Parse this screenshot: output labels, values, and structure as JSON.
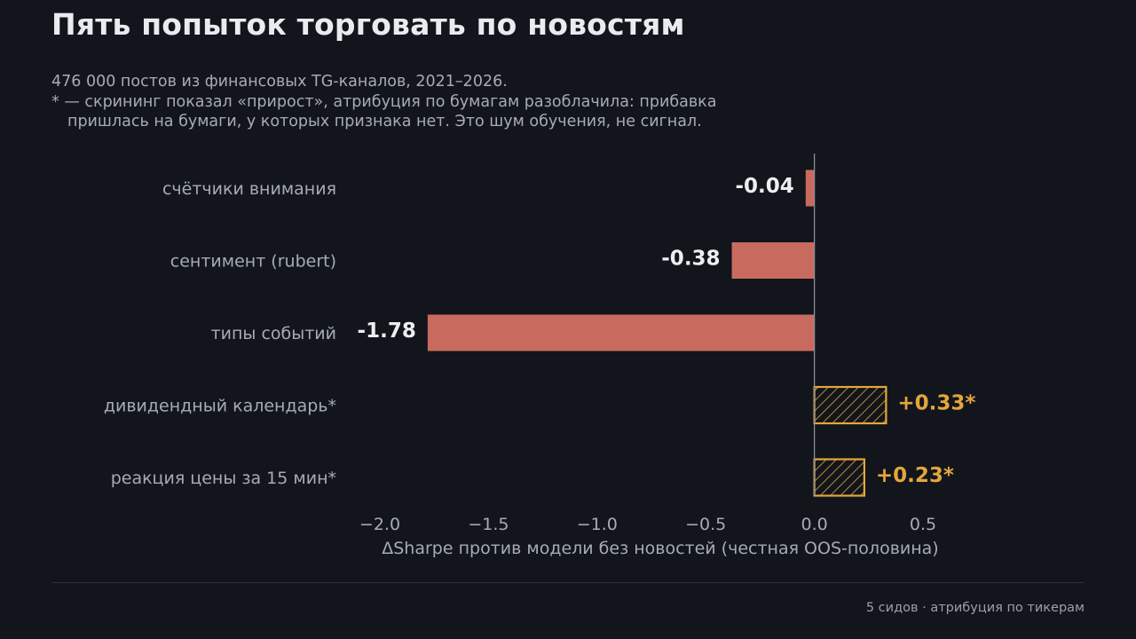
{
  "header": {
    "title": "Пять попыток торговать по новостям",
    "subtitle_lines": [
      "476 000 постов из финансовых TG-каналов, 2021–2026.",
      "* — скрининг показал «прирост», атрибуция по бумагам разоблачила: прибавка",
      "пришлась на бумаги, у которых признака нет. Это шум обучения, не сигнал."
    ]
  },
  "footer": {
    "note": "5 сидов · атрибуция по тикерам"
  },
  "colors": {
    "background": "#12151c",
    "negative": "#c96a5f",
    "positive_flagged": "#e3a63c",
    "axis_text": "#a6abb5",
    "label_text": "#eceef1"
  },
  "chart_data": {
    "type": "bar",
    "orientation": "horizontal",
    "categories": [
      "счётчики внимания",
      "сентимент (rubert)",
      "типы событий",
      "дивидендный календарь*",
      "реакция цены за 15 мин*"
    ],
    "values": [
      -0.04,
      -0.38,
      -1.78,
      0.33,
      0.23
    ],
    "value_labels": [
      "-0.04",
      "-0.38",
      "-1.78",
      "+0.33*",
      "+0.23*"
    ],
    "flagged": [
      false,
      false,
      false,
      true,
      true
    ],
    "xlabel": "ΔSharpe против модели без новостей (честная OOS-половина)",
    "xlim": [
      -2.0,
      0.5
    ],
    "xticks": [
      -2.0,
      -1.5,
      -1.0,
      -0.5,
      0.0,
      0.5
    ],
    "xtick_labels": [
      "−2.0",
      "−1.5",
      "−1.0",
      "−0.5",
      "0.0",
      "0.5"
    ],
    "grid": false,
    "legend": "none"
  }
}
